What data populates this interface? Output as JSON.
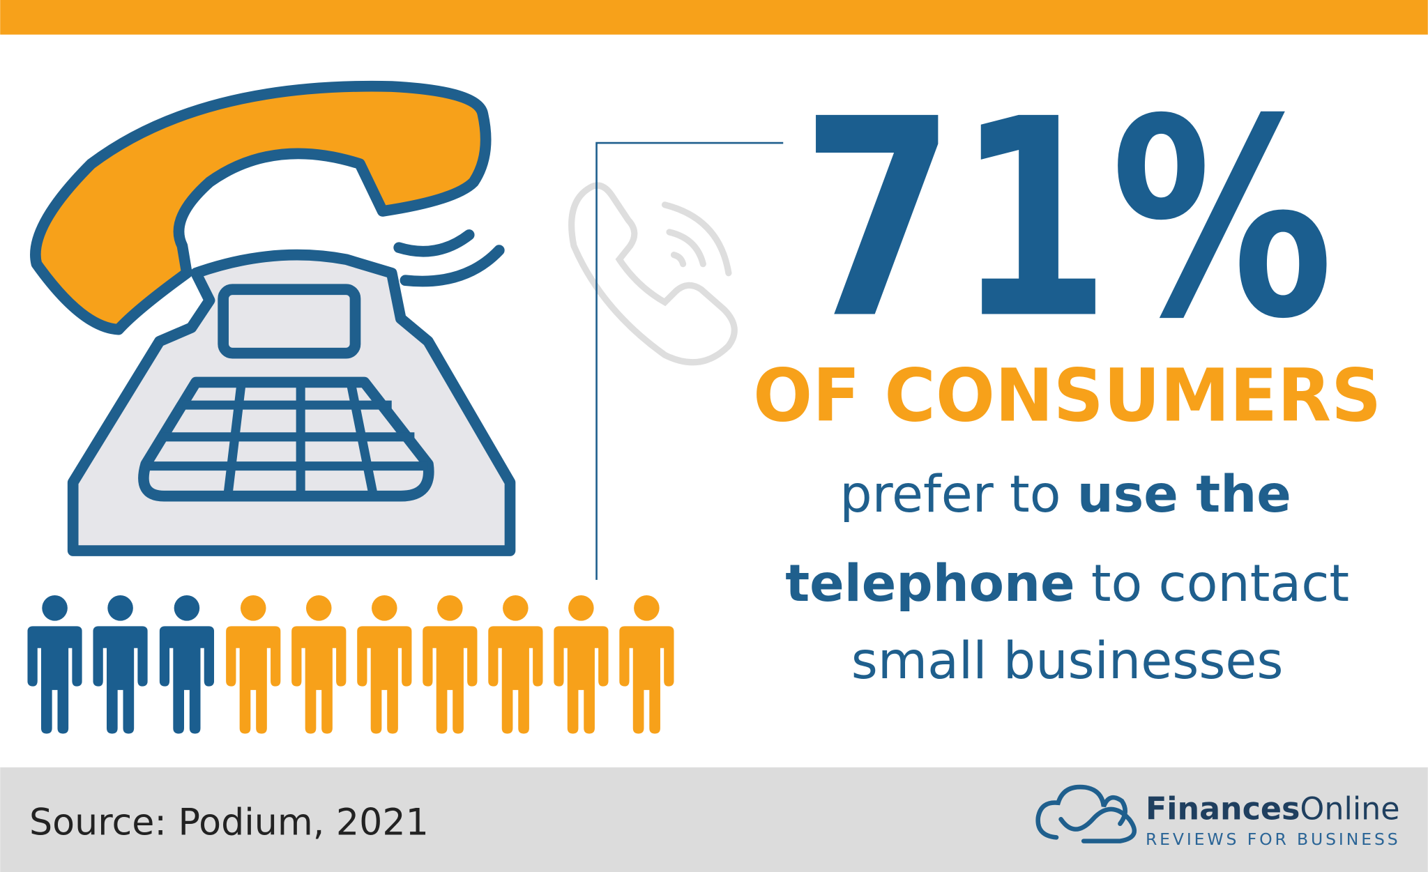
{
  "stat": "71%",
  "headline": "OF CONSUMERS",
  "body": {
    "line1": {
      "plain": "prefer to",
      "bold": "use the"
    },
    "line2": {
      "bold": "telephone",
      "plain": "to contact"
    },
    "line3": "small businesses"
  },
  "footer": {
    "source": "Source: Podium, 2021",
    "logo": {
      "name_bold": "Finances",
      "name_light": "Online",
      "tagline": "REVIEWS FOR BUSINESS"
    }
  }
}
